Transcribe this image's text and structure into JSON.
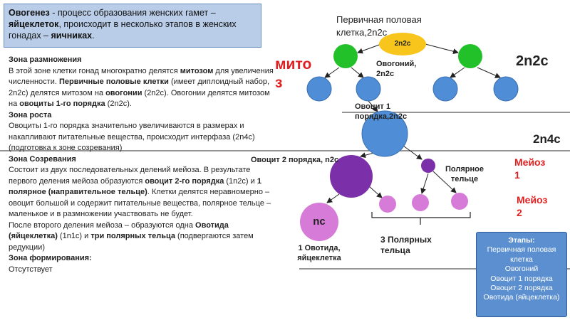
{
  "header": {
    "segments": [
      {
        "text": "Овогенез",
        "bold": true
      },
      {
        "text": " - процесс образования женских гамет – "
      },
      {
        "text": "яйцеклеток",
        "bold": true
      },
      {
        "text": ", происходит в несколько этапов в женских гонадах – "
      },
      {
        "text": "яичниках",
        "bold": true
      },
      {
        "text": "."
      }
    ]
  },
  "zones": [
    {
      "title": "Зона размножения",
      "paragraphs": [
        [
          {
            "text": "В этой зоне клетки гонад многократно делятся "
          },
          {
            "text": "митозом",
            "bold": true
          },
          {
            "text": " для увеличения численности. "
          },
          {
            "text": "Первичные половые клетки",
            "bold": true
          },
          {
            "text": " (имеет диплоидный набор, 2n2c) делятся митозом на "
          },
          {
            "text": "овогонии",
            "bold": true
          },
          {
            "text": " (2n2c). Овогонии делятся митозом на "
          },
          {
            "text": "овоциты 1-го порядка",
            "bold": true
          },
          {
            "text": " (2n2c)."
          }
        ]
      ]
    },
    {
      "title": "Зона роста",
      "paragraphs": [
        [
          {
            "text": "Овоциты 1-го порядка значительно увеличиваются в размерах и накапливают питательные вещества, происходит интерфаза (2n4c) (подготовка к зоне созревания)"
          }
        ]
      ]
    },
    {
      "title": "Зона Созревания",
      "paragraphs": [
        [
          {
            "text": "Состоит из двух последовательных делений мейоза. В результате первого деления мейоза образуются "
          },
          {
            "text": "овоцит 2-го порядка",
            "bold": true
          },
          {
            "text": " (1n2c) и "
          },
          {
            "text": "1 полярное (направительное тельце)",
            "bold": true
          },
          {
            "text": ". Клетки делятся неравномерно – овоцит большой и содержит питательные вещества, полярное тельце – маленькое и в размножении участвовать не будет."
          }
        ],
        [
          {
            "text": "После второго деления мейоза – образуются одна "
          },
          {
            "text": "Овотида (яйцеклетка)",
            "bold": true
          },
          {
            "text": " (1n1c) и "
          },
          {
            "text": "три полярных тельца",
            "bold": true
          },
          {
            "text": " (подвергаются затем редукции)"
          }
        ]
      ]
    },
    {
      "title": "Зона формирования:",
      "paragraphs": [
        [
          {
            "text": "Отсутствует"
          }
        ]
      ]
    }
  ],
  "diagram": {
    "primary_cell": "Первичная половая клетка,2n2c",
    "primary_cell_set": "2n2c",
    "mitosis": "митоз",
    "oogonium": "Овогоний, 2n2c",
    "set_2n2c": "2n2c",
    "oocyte1": "Овоцит 1 порядка,2n2c",
    "set_2n4c": "2n4c",
    "oocyte2": "Овоцит 2 порядка, n2c",
    "polar_body": "Полярное тельце",
    "meiosis1": "Мейоз 1",
    "meiosis2": "Мейоз 2",
    "ootid_set": "nc",
    "ootid": "1 Овотида, яйцеклетка",
    "polar_bodies": "3 Полярных тельца"
  },
  "stages": {
    "title": "Этапы:",
    "items": [
      "Первичная половая клетка",
      "Овогоний",
      "Овоцит 1 порядка",
      "Овоцит 2 порядка",
      "Овотида (яйцеклетка)"
    ]
  }
}
